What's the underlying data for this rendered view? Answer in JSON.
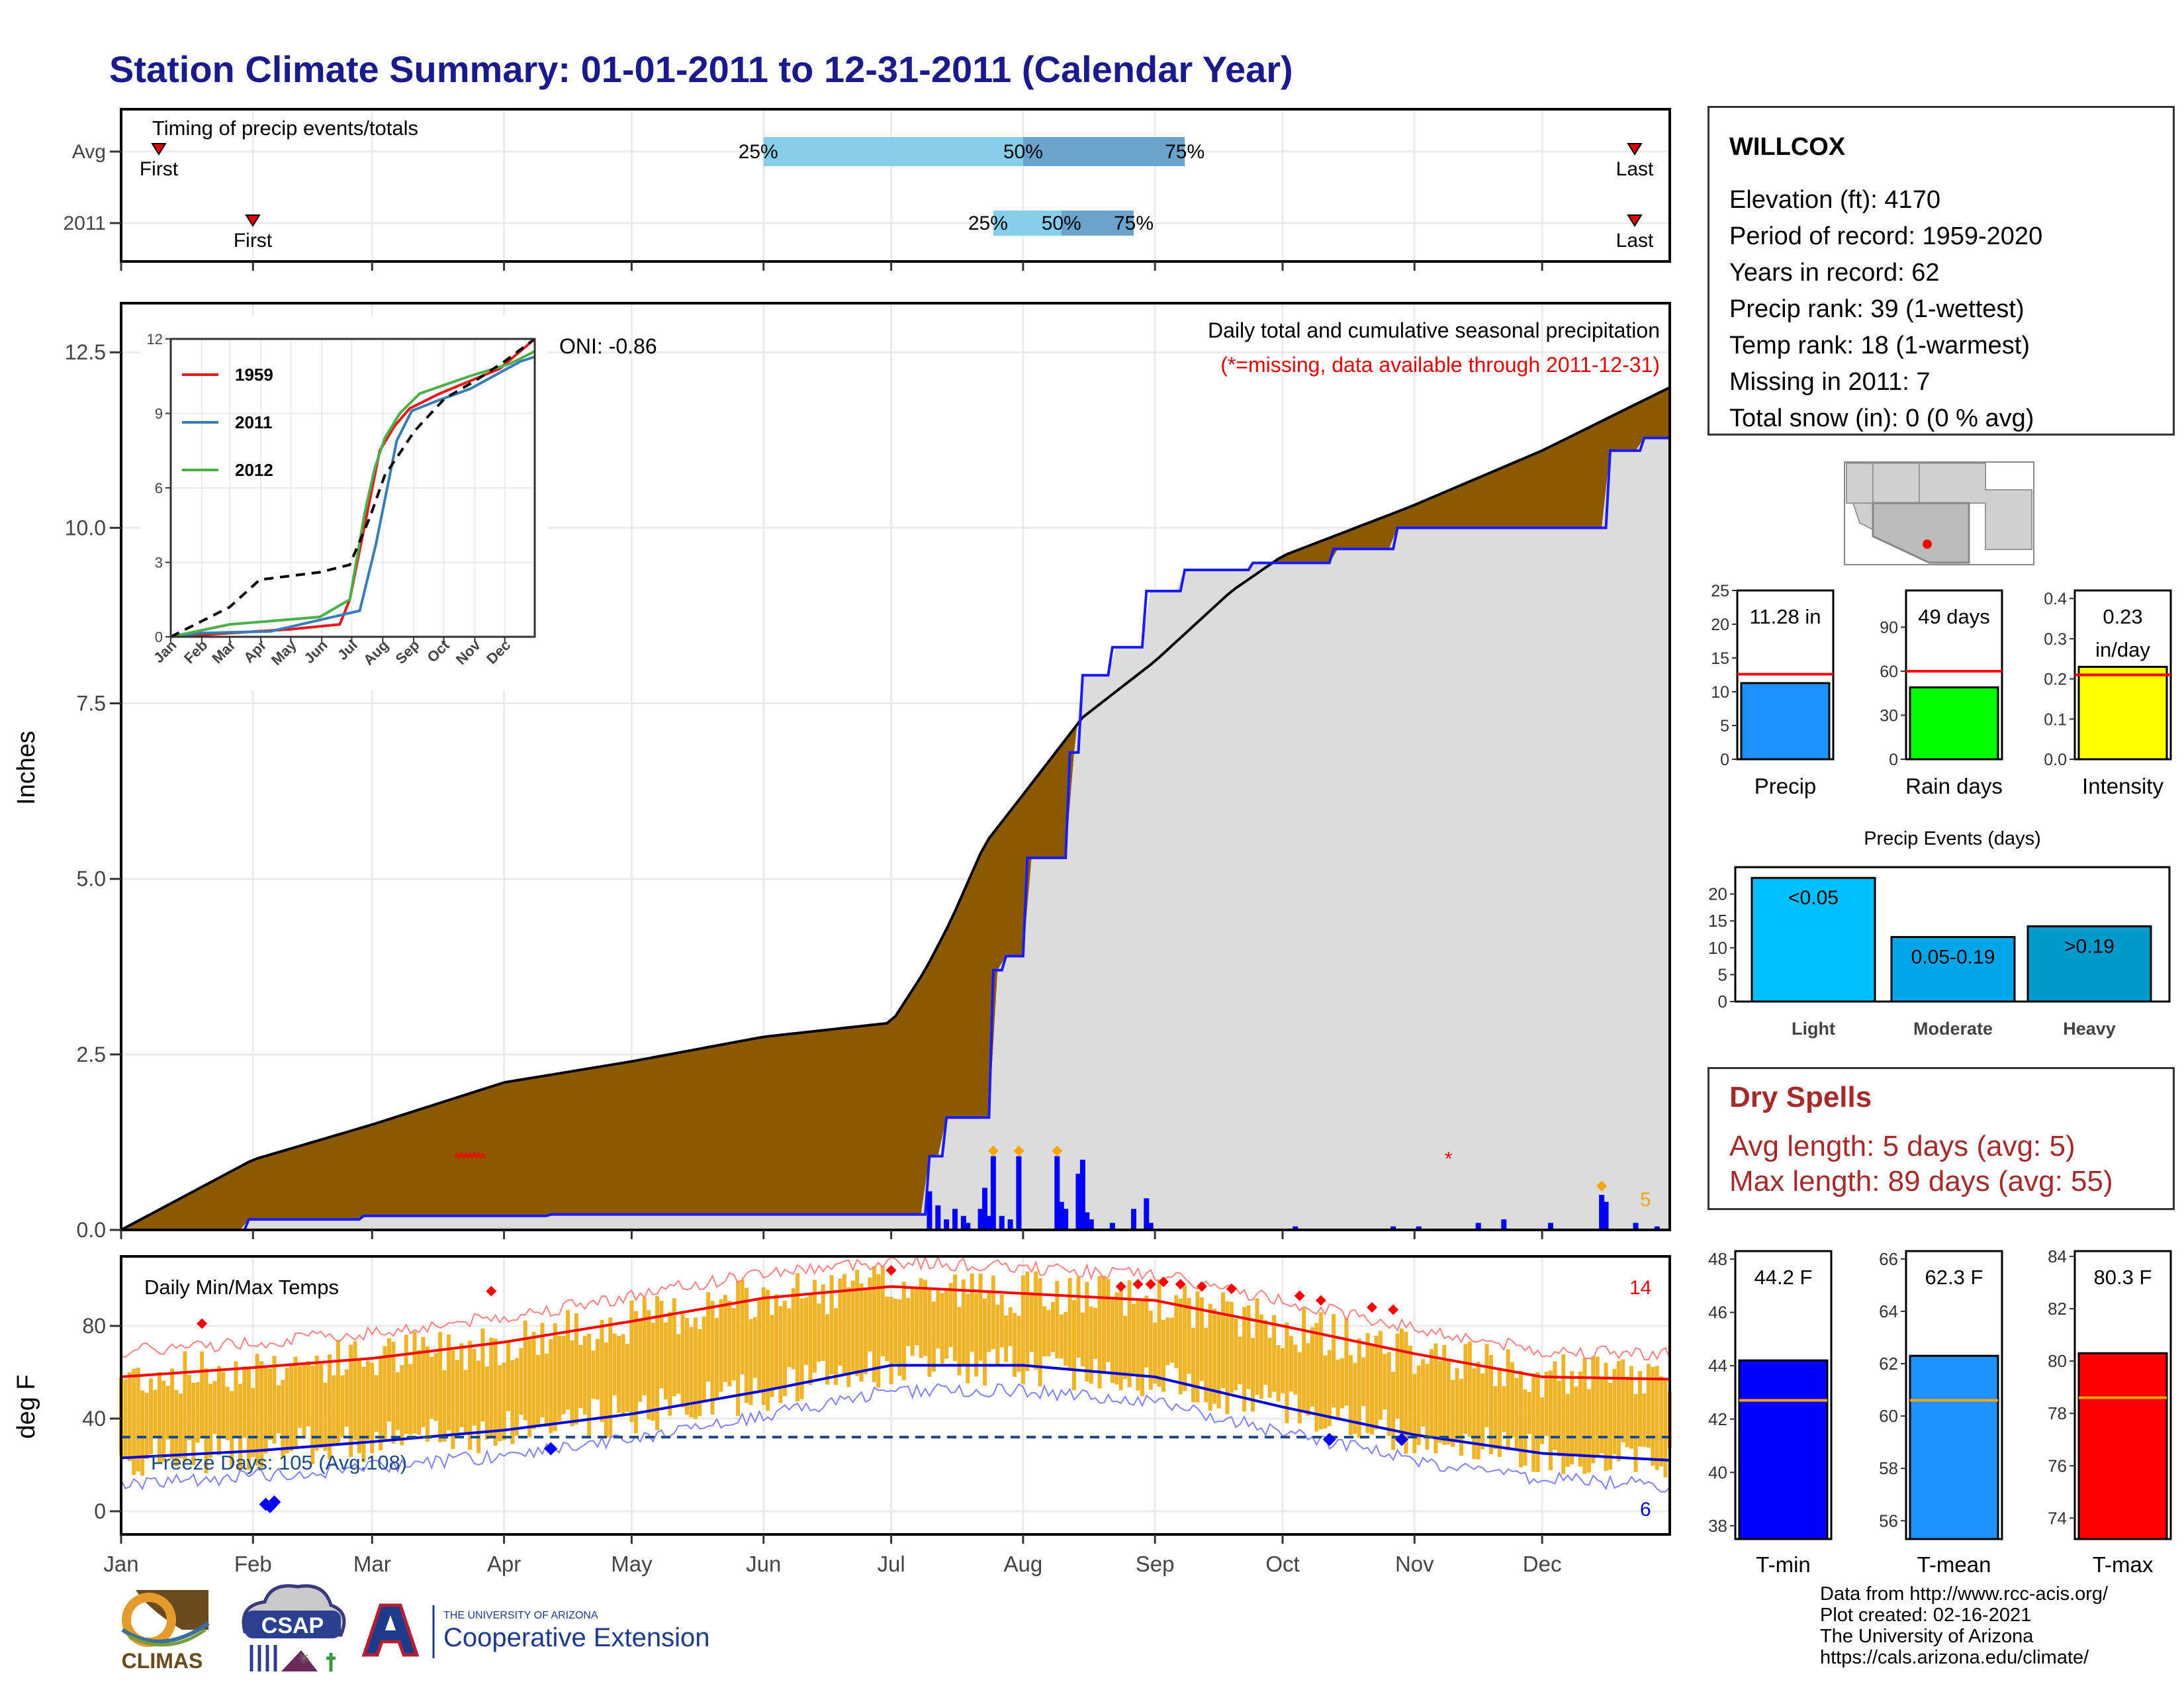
{
  "title": "Station Climate Summary: 01-01-2011 to 12-31-2011 (Calendar Year)",
  "timing": {
    "title": "Timing of precip events/totals",
    "rows": [
      {
        "label": "Avg",
        "first_day": 1,
        "last_day": 365,
        "p25_day": 152,
        "p50_day": 213,
        "p75_day": 251
      },
      {
        "label": "2011",
        "first_day": 31,
        "last_day": 365,
        "p25_day": 206,
        "p50_day": 222,
        "p75_day": 239
      }
    ],
    "first_label": "First",
    "last_label": "Last",
    "p25_label": "25%",
    "p50_label": "50%",
    "p75_label": "75%",
    "colors": {
      "light": "#87CEEB",
      "dark": "#6BA3CC",
      "marker": "#e00000"
    }
  },
  "precip": {
    "ylabel": "Inches",
    "subtitle": "Daily total and cumulative seasonal precipitation",
    "note": "(*=missing, data available through 2011-12-31)",
    "oni": "ONI: -0.86",
    "count_label": "5",
    "yticks": [
      "0.0",
      "2.5",
      "5.0",
      "7.5",
      "10.0",
      "12.5"
    ],
    "ylim": [
      0,
      12.5
    ],
    "colors": {
      "deficit": "#8B5A00",
      "surplus": "#119911",
      "fill": "#DCDCDC",
      "line": "#1a1aff",
      "avg_line": "#000000",
      "bars": "#0000ff",
      "diamond": "#FFA500",
      "missing": "#ff0000"
    }
  },
  "inset": {
    "yticks": [
      "0",
      "3",
      "6",
      "9",
      "12"
    ],
    "xticks": [
      "Jan",
      "Feb",
      "Mar",
      "Apr",
      "May",
      "Jun",
      "Jul",
      "Aug",
      "Sep",
      "Oct",
      "Nov",
      "Dec"
    ],
    "legend": [
      {
        "name": "1959",
        "color": "#e41a1c"
      },
      {
        "name": "2011",
        "color": "#377eb8"
      },
      {
        "name": "2012",
        "color": "#4daf4a"
      }
    ]
  },
  "temps": {
    "ylabel": "deg F",
    "subtitle": "Daily Min/Max Temps",
    "freeze": "Freeze Days: 105 (Avg:108)",
    "hot_count": "14",
    "cold_count": "6",
    "yticks": [
      "0",
      "40",
      "80"
    ],
    "months": [
      "Jan",
      "Feb",
      "Mar",
      "Apr",
      "May",
      "Jun",
      "Jul",
      "Aug",
      "Sep",
      "Oct",
      "Nov",
      "Dec"
    ],
    "colors": {
      "bars": "#F0B429",
      "max_avg": "#ff0000",
      "min_avg": "#0000dd",
      "freeze": "#1a4a8a"
    }
  },
  "station": {
    "name": "WILLCOX",
    "lines": [
      "Elevation (ft): 4170",
      "Period of record: 1959-2020",
      "Years in record: 62",
      "Precip rank: 39 (1-wettest)",
      "Temp rank: 18 (1-warmest)",
      "Missing in 2011: 7",
      "Total snow (in): 0 (0 % avg)"
    ]
  },
  "summary_bars": [
    {
      "name": "Precip",
      "label": "11.28 in",
      "value": 11.28,
      "avg": 12.6,
      "ymax": 25,
      "ticks": [
        "0",
        "5",
        "10",
        "15",
        "20",
        "25"
      ],
      "color": "#1E90FF"
    },
    {
      "name": "Rain days",
      "label": "49 days",
      "value": 49,
      "avg": 60,
      "ymax": 115,
      "ticks": [
        "0",
        "30",
        "60",
        "90"
      ],
      "color": "#00FF00"
    },
    {
      "name": "Intensity",
      "label": "0.23 in/day",
      "label1": "0.23",
      "label2": "in/day",
      "value": 0.23,
      "avg": 0.21,
      "ymax": 0.42,
      "ticks": [
        "0.0",
        "0.1",
        "0.2",
        "0.3",
        "0.4"
      ],
      "color": "#FFFF00"
    }
  ],
  "events": {
    "title": "Precip Events (days)",
    "yticks": [
      "0",
      "5",
      "10",
      "15",
      "20"
    ],
    "bars": [
      {
        "name": "Light",
        "label": "<0.05",
        "value": 23,
        "color": "#00BFFF"
      },
      {
        "name": "Moderate",
        "label": "0.05-0.19",
        "value": 12,
        "color": "#00A6E8"
      },
      {
        "name": "Heavy",
        "label": ">0.19",
        "value": 14,
        "color": "#0099CC"
      }
    ]
  },
  "dry_spells": {
    "title": "Dry Spells",
    "avg": "Avg length: 5 days (avg: 5)",
    "max": "Max length: 89 days (avg: 55)"
  },
  "temp_bars": [
    {
      "name": "T-min",
      "label": "44.2 F",
      "value": 44.2,
      "avg": 42.7,
      "ymin": 37.5,
      "ymax": 48.3,
      "ticks": [
        "38",
        "40",
        "42",
        "44",
        "46",
        "48"
      ],
      "color": "#0000FF"
    },
    {
      "name": "T-mean",
      "label": "62.3 F",
      "value": 62.3,
      "avg": 60.6,
      "ymin": 55.3,
      "ymax": 66.3,
      "ticks": [
        "56",
        "58",
        "60",
        "62",
        "64",
        "66"
      ],
      "color": "#1E90FF"
    },
    {
      "name": "T-max",
      "label": "80.3 F",
      "value": 80.3,
      "avg": 78.6,
      "ymin": 73.2,
      "ymax": 84.2,
      "ticks": [
        "74",
        "76",
        "78",
        "80",
        "82",
        "84"
      ],
      "color": "#FF0000"
    }
  ],
  "credits": [
    "Data from http://www.rcc-acis.org/",
    "Plot created: 02-16-2021",
    "The University of Arizona",
    "https://cals.arizona.edu/climate/"
  ],
  "logos": {
    "climas": "CLIMAS",
    "csap": "CSAP",
    "ua_small": "THE UNIVERSITY OF ARIZONA",
    "coop": "Cooperative Extension"
  },
  "chart_data": [
    {
      "type": "area",
      "title": "Daily total and cumulative seasonal precipitation",
      "ylabel": "Inches",
      "ylim": [
        0,
        12.5
      ],
      "x_months": [
        "Jan",
        "Feb",
        "Mar",
        "Apr",
        "May",
        "Jun",
        "Jul",
        "Aug",
        "Sep",
        "Oct",
        "Nov",
        "Dec"
      ],
      "series": [
        {
          "name": "avg_cumulative",
          "x": [
            1,
            32,
            60,
            91,
            121,
            152,
            182,
            190,
            196,
            204,
            213,
            227,
            244,
            262,
            274,
            304,
            335,
            365
          ],
          "y": [
            0,
            1.0,
            1.5,
            2.1,
            2.4,
            2.75,
            2.95,
            3.7,
            4.4,
            5.5,
            6.2,
            7.3,
            8.1,
            9.1,
            9.6,
            10.3,
            11.1,
            12.0
          ]
        },
        {
          "name": "2011_cumulative",
          "x": [
            1,
            30,
            31,
            57,
            58,
            101,
            102,
            190,
            191,
            194,
            195,
            205,
            206,
            208,
            209,
            213,
            214,
            223,
            224,
            226,
            227,
            233,
            234,
            241,
            242,
            250,
            251,
            266,
            267,
            285,
            286,
            300,
            301,
            350,
            351,
            358,
            359,
            365
          ],
          "y": [
            0,
            0,
            0.15,
            0.15,
            0.2,
            0.2,
            0.22,
            0.22,
            1.05,
            1.05,
            1.6,
            1.6,
            3.7,
            3.7,
            3.9,
            3.9,
            5.3,
            5.3,
            6.8,
            6.8,
            7.9,
            7.9,
            8.3,
            8.3,
            9.1,
            9.1,
            9.4,
            9.4,
            9.5,
            9.5,
            9.7,
            9.7,
            10.0,
            10.0,
            11.1,
            11.1,
            11.28,
            11.28
          ]
        },
        {
          "name": "2011_daily",
          "x": [
            191,
            193,
            195,
            197,
            199,
            200,
            203,
            204,
            205,
            206,
            208,
            210,
            212,
            221,
            222,
            223,
            226,
            227,
            228,
            229,
            234,
            239,
            242,
            243,
            277,
            300,
            306,
            320,
            326,
            337,
            349,
            350,
            357,
            362
          ],
          "y": [
            0.55,
            0.35,
            0.15,
            0.3,
            0.2,
            0.1,
            0.3,
            0.6,
            0.2,
            1.05,
            0.2,
            0.15,
            1.05,
            1.05,
            0.4,
            0.3,
            0.8,
            1.0,
            0.25,
            0.15,
            0.1,
            0.3,
            0.45,
            0.1,
            0.05,
            0.05,
            0.05,
            0.1,
            0.15,
            0.1,
            0.5,
            0.4,
            0.1,
            0.05
          ]
        }
      ]
    },
    {
      "type": "line",
      "title": "",
      "x_months": [
        "Jan",
        "Feb",
        "Mar",
        "Apr",
        "May",
        "Jun",
        "Jul",
        "Aug",
        "Sep",
        "Oct",
        "Nov",
        "Dec"
      ],
      "ylim": [
        0,
        12
      ],
      "series": [
        {
          "name": "1959",
          "x": [
            1,
            120,
            170,
            180,
            195,
            210,
            225,
            240,
            270,
            300,
            330,
            365
          ],
          "y": [
            0,
            0.3,
            0.5,
            1.5,
            4.5,
            7.5,
            8.5,
            9.2,
            9.8,
            10.3,
            10.8,
            12.0
          ]
        },
        {
          "name": "2011",
          "x": [
            1,
            31,
            101,
            190,
            206,
            214,
            227,
            242,
            267,
            301,
            351,
            365
          ],
          "y": [
            0,
            0.15,
            0.22,
            1.05,
            3.7,
            5.3,
            7.9,
            9.1,
            9.5,
            10.0,
            11.1,
            11.28
          ]
        },
        {
          "name": "2012",
          "x": [
            1,
            60,
            150,
            180,
            195,
            205,
            215,
            230,
            250,
            300,
            340,
            365
          ],
          "y": [
            0,
            0.5,
            0.8,
            1.5,
            5.0,
            6.8,
            8.0,
            9.0,
            9.8,
            10.5,
            11.0,
            11.5
          ]
        },
        {
          "name": "avg",
          "x": [
            1,
            60,
            90,
            150,
            180,
            200,
            215,
            245,
            275,
            305,
            335,
            365
          ],
          "y": [
            0,
            1.2,
            2.3,
            2.6,
            2.9,
            4.8,
            6.5,
            8.3,
            9.6,
            10.3,
            11.1,
            12.0
          ]
        }
      ]
    },
    {
      "type": "bar",
      "title": "Daily Min/Max Temps",
      "ylabel": "deg F",
      "ylim": [
        -10,
        110
      ],
      "x_months": [
        "Jan",
        "Feb",
        "Mar",
        "Apr",
        "May",
        "Jun",
        "Jul",
        "Aug",
        "Sep",
        "Oct",
        "Nov",
        "Dec"
      ],
      "series": [
        {
          "name": "avg_max",
          "x": [
            1,
            32,
            60,
            91,
            121,
            152,
            182,
            213,
            244,
            274,
            305,
            335,
            365
          ],
          "y": [
            58,
            62,
            66,
            73,
            82,
            92,
            97,
            94,
            91,
            80,
            68,
            58,
            57
          ]
        },
        {
          "name": "avg_min",
          "x": [
            1,
            32,
            60,
            91,
            121,
            152,
            182,
            213,
            244,
            274,
            305,
            335,
            365
          ],
          "y": [
            23,
            26,
            30,
            35,
            42,
            52,
            63,
            63,
            58,
            45,
            33,
            25,
            22
          ]
        },
        {
          "name": "freeze_line",
          "x": [
            1,
            365
          ],
          "y": [
            32,
            32
          ]
        }
      ]
    },
    {
      "type": "bar",
      "categories": [
        "Precip",
        "Rain days",
        "Intensity",
        "Light",
        "Moderate",
        "Heavy",
        "T-min",
        "T-mean",
        "T-max"
      ],
      "values": [
        11.28,
        49,
        0.23,
        23,
        12,
        14,
        44.2,
        62.3,
        80.3
      ]
    }
  ]
}
